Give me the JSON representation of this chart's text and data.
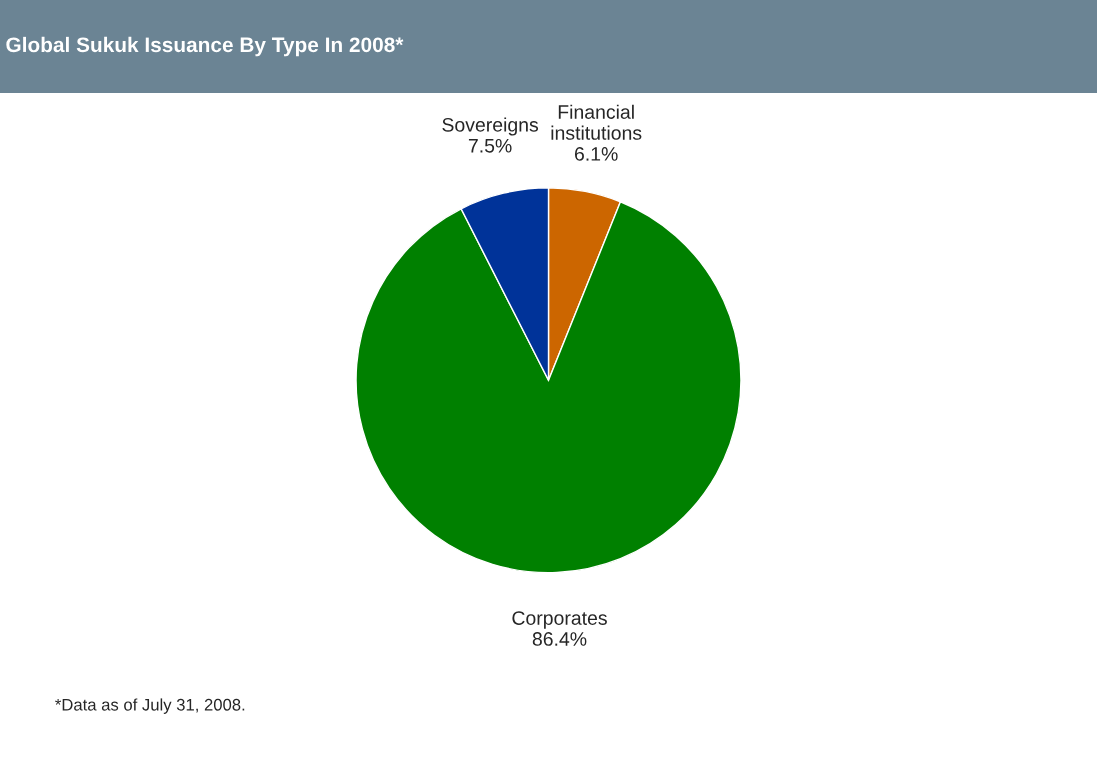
{
  "chart_data": {
    "type": "pie",
    "title": "Global Sukuk Issuance By Type In 2008*",
    "categories": [
      "Financial institutions",
      "Corporates",
      "Sovereigns"
    ],
    "values": [
      6.1,
      86.4,
      7.5
    ],
    "value_labels": [
      "6.1%",
      "86.4%",
      "7.5%"
    ],
    "colors": [
      "#cc6600",
      "#008000",
      "#003399"
    ],
    "annotations": [
      "*Data as of July 31, 2008."
    ]
  }
}
